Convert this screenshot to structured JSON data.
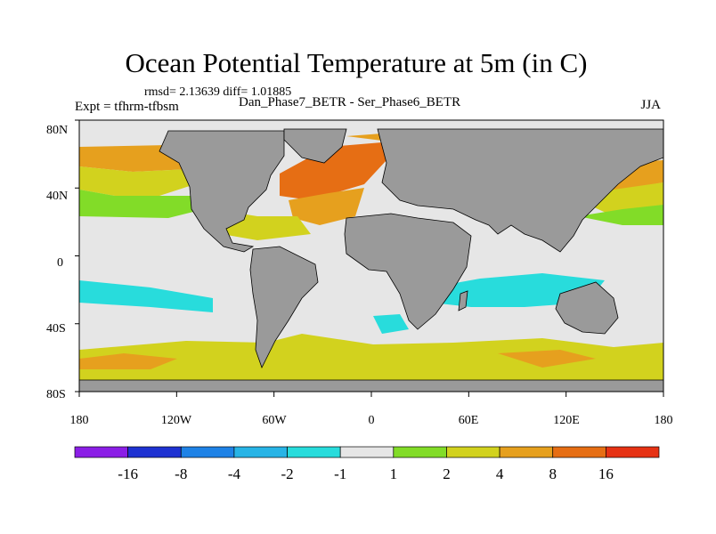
{
  "title": "Ocean Potential Temperature at 5m (in C)",
  "stats": "rmsd= 2.13639 diff= 1.01885",
  "experiment": "Expt = tfhrm-tfbsm",
  "comparison": "Dan_Phase7_BETR - Ser_Phase6_BETR",
  "season": "JJA",
  "axes": {
    "lon_ticks": [
      "180",
      "120W",
      "60W",
      "0",
      "60E",
      "120E",
      "180"
    ],
    "lat_ticks": [
      "80N",
      "40N",
      "0",
      "40S",
      "80S"
    ]
  },
  "colors": {
    "land": "#9a9a9a",
    "ocean_base": "#e6e6e6",
    "coast": "#000000",
    "bins": [
      "#8b1ee6",
      "#1e32d2",
      "#1e82e6",
      "#28b4e6",
      "#28dcdc",
      "#e6e6e6",
      "#82dc28",
      "#d2d21e",
      "#e6a01e",
      "#e66e14",
      "#e63214"
    ]
  },
  "colorbar": {
    "labels": [
      "-16",
      "-8",
      "-4",
      "-2",
      "-1",
      "1",
      "2",
      "4",
      "8",
      "16"
    ]
  }
}
